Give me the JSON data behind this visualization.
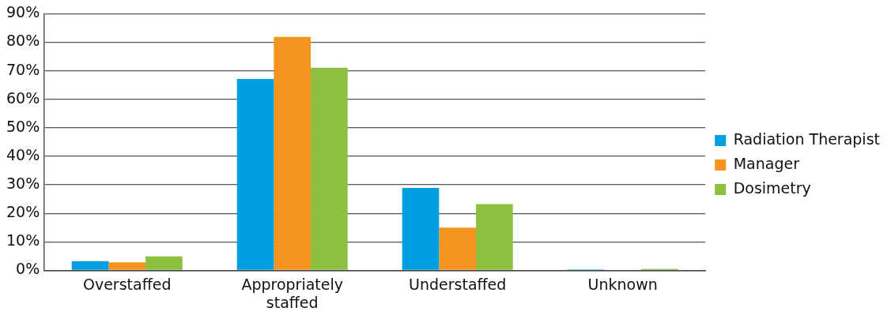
{
  "chart_data": {
    "type": "bar",
    "categories": [
      "Overstaffed",
      "Appropriately staffed",
      "Understaffed",
      "Unknown"
    ],
    "series": [
      {
        "name": "Radiation Therapist",
        "color": "#009fdf",
        "values": [
          3.2,
          67.1,
          28.9,
          0.3
        ]
      },
      {
        "name": "Manager",
        "color": "#f4931e",
        "values": [
          2.8,
          81.9,
          15.0,
          0
        ]
      },
      {
        "name": "Dosimetry",
        "color": "#8dc03f",
        "values": [
          4.9,
          71.1,
          23.2,
          0.5
        ]
      }
    ],
    "ylim": [
      0,
      90
    ],
    "yticks": [
      {
        "value": 0,
        "label": "0%"
      },
      {
        "value": 10,
        "label": "10%"
      },
      {
        "value": 20,
        "label": "20%"
      },
      {
        "value": 30,
        "label": "30%"
      },
      {
        "value": 40,
        "label": "40%"
      },
      {
        "value": 50,
        "label": "50%"
      },
      {
        "value": 60,
        "label": "60%"
      },
      {
        "value": 70,
        "label": "70%"
      },
      {
        "value": 80,
        "label": "80%"
      },
      {
        "value": 90,
        "label": "90%"
      }
    ],
    "grid": "y",
    "legend": "right"
  }
}
